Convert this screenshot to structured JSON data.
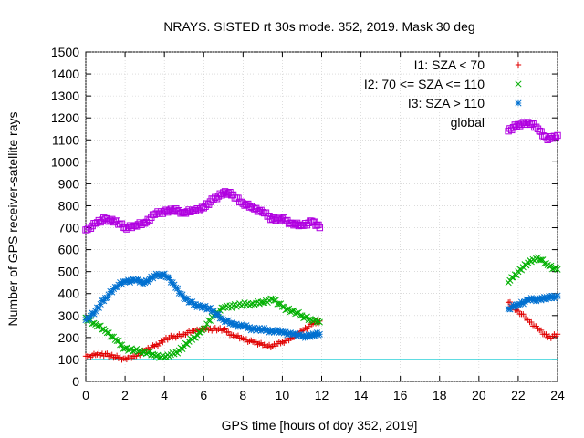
{
  "chart_data": {
    "type": "scatter",
    "title": "NRAYS. SISTED rt 30s mode. 352, 2019. Mask 30 deg",
    "xlabel": "GPS time [hours of doy 352, 2019]",
    "ylabel": "Number of GPS receiver-satellite rays",
    "xlim": [
      0,
      24
    ],
    "ylim": [
      0,
      1500
    ],
    "xticks": [
      "0",
      "2",
      "4",
      "6",
      "8",
      "10",
      "12",
      "14",
      "16",
      "18",
      "20",
      "22",
      "24"
    ],
    "yticks": [
      "0",
      "100",
      "200",
      "300",
      "400",
      "500",
      "600",
      "700",
      "800",
      "900",
      "1000",
      "1100",
      "1200",
      "1300",
      "1400",
      "1500"
    ],
    "legend_position": "top-right",
    "series": [
      {
        "name": "I1: SZA < 70",
        "marker": "+",
        "color": "#e00000",
        "points": [
          [
            0,
            115
          ],
          [
            0.5,
            120
          ],
          [
            1,
            125
          ],
          [
            1.5,
            110
          ],
          [
            2,
            105
          ],
          [
            2.5,
            115
          ],
          [
            3,
            140
          ],
          [
            3.5,
            160
          ],
          [
            4,
            190
          ],
          [
            4.5,
            205
          ],
          [
            5,
            215
          ],
          [
            5.5,
            230
          ],
          [
            6,
            235
          ],
          [
            6.5,
            240
          ],
          [
            7,
            235
          ],
          [
            7.5,
            210
          ],
          [
            8,
            195
          ],
          [
            8.5,
            180
          ],
          [
            9,
            165
          ],
          [
            9.5,
            160
          ],
          [
            10,
            180
          ],
          [
            10.5,
            200
          ],
          [
            11,
            230
          ],
          [
            11.5,
            260
          ],
          [
            11.9,
            275
          ],
          [
            21.5,
            360
          ],
          [
            22,
            320
          ],
          [
            22.5,
            280
          ],
          [
            23,
            240
          ],
          [
            23.5,
            200
          ],
          [
            24,
            215
          ]
        ]
      },
      {
        "name": "I2: 70 <= SZA <= 110",
        "marker": "x",
        "color": "#00b000",
        "points": [
          [
            0,
            290
          ],
          [
            0.5,
            260
          ],
          [
            1,
            230
          ],
          [
            1.5,
            190
          ],
          [
            2,
            150
          ],
          [
            2.5,
            140
          ],
          [
            3,
            135
          ],
          [
            3.5,
            120
          ],
          [
            4,
            110
          ],
          [
            4.5,
            125
          ],
          [
            5,
            160
          ],
          [
            5.5,
            200
          ],
          [
            6,
            240
          ],
          [
            6.5,
            300
          ],
          [
            7,
            335
          ],
          [
            7.5,
            345
          ],
          [
            8,
            350
          ],
          [
            8.5,
            355
          ],
          [
            9,
            360
          ],
          [
            9.5,
            375
          ],
          [
            10,
            340
          ],
          [
            10.5,
            320
          ],
          [
            11,
            300
          ],
          [
            11.5,
            280
          ],
          [
            11.9,
            270
          ],
          [
            21.5,
            450
          ],
          [
            22,
            500
          ],
          [
            22.5,
            540
          ],
          [
            23,
            565
          ],
          [
            23.5,
            530
          ],
          [
            24,
            510
          ]
        ]
      },
      {
        "name": "I3: SZA > 110",
        "marker": "*",
        "color": "#0070d0",
        "points": [
          [
            0,
            280
          ],
          [
            0.5,
            320
          ],
          [
            1,
            380
          ],
          [
            1.5,
            430
          ],
          [
            2,
            455
          ],
          [
            2.5,
            460
          ],
          [
            3,
            450
          ],
          [
            3.5,
            480
          ],
          [
            4,
            490
          ],
          [
            4.5,
            440
          ],
          [
            5,
            380
          ],
          [
            5.5,
            350
          ],
          [
            6,
            340
          ],
          [
            6.5,
            320
          ],
          [
            7,
            280
          ],
          [
            7.5,
            260
          ],
          [
            8,
            250
          ],
          [
            8.5,
            240
          ],
          [
            9,
            235
          ],
          [
            9.5,
            230
          ],
          [
            10,
            225
          ],
          [
            10.5,
            215
          ],
          [
            11,
            205
          ],
          [
            11.5,
            210
          ],
          [
            11.9,
            215
          ],
          [
            21.5,
            330
          ],
          [
            22,
            350
          ],
          [
            22.5,
            370
          ],
          [
            23,
            375
          ],
          [
            23.5,
            380
          ],
          [
            24,
            390
          ]
        ]
      },
      {
        "name": "global",
        "marker": "square",
        "color": "#b000e0",
        "points": [
          [
            0,
            690
          ],
          [
            0.5,
            720
          ],
          [
            1,
            740
          ],
          [
            1.5,
            730
          ],
          [
            2,
            700
          ],
          [
            2.5,
            710
          ],
          [
            3,
            720
          ],
          [
            3.5,
            760
          ],
          [
            4,
            775
          ],
          [
            4.5,
            780
          ],
          [
            5,
            770
          ],
          [
            5.5,
            780
          ],
          [
            6,
            790
          ],
          [
            6.5,
            830
          ],
          [
            7,
            860
          ],
          [
            7.5,
            850
          ],
          [
            8,
            810
          ],
          [
            8.5,
            790
          ],
          [
            9,
            770
          ],
          [
            9.5,
            740
          ],
          [
            10,
            740
          ],
          [
            10.5,
            720
          ],
          [
            11,
            710
          ],
          [
            11.5,
            730
          ],
          [
            11.9,
            700
          ],
          [
            21.5,
            1140
          ],
          [
            22,
            1170
          ],
          [
            22.5,
            1180
          ],
          [
            23,
            1150
          ],
          [
            23.5,
            1100
          ],
          [
            24,
            1120
          ]
        ]
      }
    ],
    "reference_line": {
      "y": 100,
      "color": "#00c8d0"
    }
  }
}
